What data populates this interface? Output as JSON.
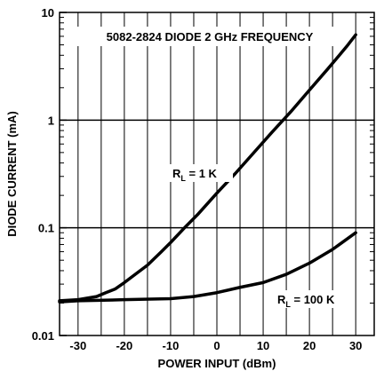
{
  "chart_data": {
    "type": "line",
    "title": "5082-2824 DIODE 2 GHz FREQUENCY",
    "xlabel": "POWER INPUT (dBm)",
    "ylabel": "DIODE CURRENT (mA)",
    "x_scale": "linear",
    "y_scale": "log",
    "xlim": [
      -34,
      34
    ],
    "ylim": [
      0.01,
      10
    ],
    "x_ticks": [
      -30,
      -20,
      -10,
      0,
      10,
      20,
      30
    ],
    "x_tick_labels": [
      "-30",
      "-20",
      "-10",
      "0",
      "10",
      "20",
      "30"
    ],
    "y_ticks": [
      0.01,
      0.1,
      1,
      10
    ],
    "y_tick_labels": [
      "0.01",
      "0.1",
      "1",
      "10"
    ],
    "grid": "vertical every 5 dBm; horizontal at each decade",
    "annotations": [
      {
        "text": "R",
        "sub": "L",
        "rest": " = 1 K"
      },
      {
        "text": "R",
        "sub": "L",
        "rest": " = 100 K"
      }
    ],
    "series": [
      {
        "name": "RL = 1 K",
        "x": [
          -34,
          -30,
          -26,
          -24,
          -22,
          -20,
          -18,
          -15,
          -12,
          -10,
          -7,
          -4,
          0,
          4,
          8,
          12,
          16,
          20,
          24,
          28,
          30
        ],
        "y": [
          0.021,
          0.0215,
          0.023,
          0.025,
          0.027,
          0.031,
          0.036,
          0.045,
          0.06,
          0.073,
          0.1,
          0.135,
          0.21,
          0.32,
          0.5,
          0.78,
          1.2,
          1.9,
          3.0,
          4.8,
          6.2
        ]
      },
      {
        "name": "RL = 100 K",
        "x": [
          -34,
          -30,
          -20,
          -10,
          -5,
          0,
          5,
          10,
          15,
          20,
          25,
          30
        ],
        "y": [
          0.0205,
          0.021,
          0.0215,
          0.022,
          0.023,
          0.025,
          0.028,
          0.031,
          0.037,
          0.047,
          0.063,
          0.09
        ]
      }
    ]
  }
}
